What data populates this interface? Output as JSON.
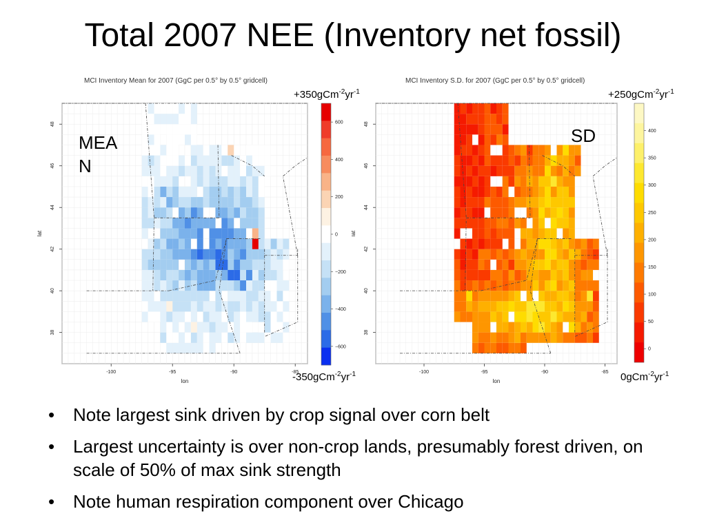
{
  "slide": {
    "title": "Total 2007 NEE (Inventory net fossil)",
    "bullets": [
      "Note largest sink driven by crop signal over corn belt",
      "Largest uncertainty is over non-crop lands, presumably forest driven, on scale of 50% of max sink strength",
      "Note human respiration component over Chicago"
    ]
  },
  "chart_data": [
    {
      "type": "heatmap",
      "title": "MCI Inventory Mean for 2007 (GgC per 0.5° by 0.5° gridcell)",
      "overlay_label": "MEAN",
      "overlay_label_lines": [
        "MEA",
        "N"
      ],
      "xlabel": "lon",
      "ylabel": "lat",
      "xlim": [
        -104,
        -84
      ],
      "ylim": [
        36.5,
        49
      ],
      "x_ticks": [
        "-100",
        "-95",
        "-90",
        "-85"
      ],
      "y_ticks": [
        "38",
        "40",
        "42",
        "44",
        "46",
        "48"
      ],
      "colorbar": {
        "ticks": [
          "600",
          "400",
          "200",
          "0",
          "−200",
          "−400",
          "−600"
        ],
        "range": [
          -700,
          700
        ],
        "top_label": {
          "main": "+350gCm",
          "sup1": "-2",
          "mid": "yr",
          "sup2": "-1"
        },
        "bottom_label": {
          "main": "-350gCm",
          "sup1": "-2",
          "mid": "yr",
          "sup2": "-1"
        },
        "colors": [
          "#e60000",
          "#ef3c2a",
          "#f6683f",
          "#f78c5e",
          "#f9b388",
          "#fbd4b4",
          "#fdf2e3",
          "#ffffff",
          "#e3f1fb",
          "#c5e1f6",
          "#a3cdf0",
          "#7bb2eb",
          "#5090e6",
          "#2c6be7",
          "#0a2ff0"
        ]
      },
      "cells": [
        [
          -88.5,
          42.0,
          650
        ],
        [
          -88.5,
          42.5,
          250
        ],
        [
          -90.5,
          46.5,
          200
        ],
        [
          -95.5,
          39.0,
          80
        ],
        [
          -93.5,
          38.0,
          60
        ],
        [
          -91.5,
          41.0,
          -520
        ],
        [
          -91.0,
          41.0,
          -560
        ],
        [
          -90.5,
          40.5,
          -580
        ],
        [
          -90.0,
          40.5,
          -520
        ],
        [
          -89.5,
          40.0,
          -470
        ],
        [
          -89.0,
          40.5,
          -460
        ],
        [
          -89.5,
          41.5,
          -500
        ],
        [
          -90.0,
          41.0,
          -480
        ],
        [
          -94.0,
          43.0,
          -450
        ],
        [
          -93.5,
          43.5,
          -430
        ],
        [
          -94.5,
          43.5,
          -420
        ],
        [
          -95.0,
          43.0,
          -400
        ],
        [
          -93.0,
          43.0,
          -380
        ],
        [
          -96.0,
          44.5,
          -380
        ],
        [
          -95.5,
          44.0,
          -360
        ],
        [
          -97.0,
          41.0,
          -320
        ]
      ]
    },
    {
      "type": "heatmap",
      "title": "MCI Inventory S.D. for 2007 (GgC per 0.5° by 0.5° gridcell)",
      "overlay_label": "SD",
      "xlabel": "lon",
      "ylabel": "lat",
      "xlim": [
        -104,
        -84
      ],
      "ylim": [
        36.5,
        49
      ],
      "x_ticks": [
        "-100",
        "-95",
        "-90",
        "-85"
      ],
      "y_ticks": [
        "38",
        "40",
        "42",
        "44",
        "46",
        "48"
      ],
      "colorbar": {
        "ticks": [
          "400",
          "350",
          "300",
          "250",
          "200",
          "150",
          "100",
          "50",
          "0"
        ],
        "range": [
          -25,
          450
        ],
        "top_label": {
          "main": "+250gCm",
          "sup1": "-2",
          "mid": "yr",
          "sup2": "-1"
        },
        "bottom_label": {
          "main": "0gCm",
          "sup1": "-2",
          "mid": "yr",
          "sup2": "-1"
        },
        "colors": [
          "#fdf8c4",
          "#fdf59e",
          "#fdf06a",
          "#fde830",
          "#fedc00",
          "#fec800",
          "#feb000",
          "#fe9600",
          "#fe7a00",
          "#fd5a00",
          "#fa3a00",
          "#f51a00",
          "#ee0000"
        ]
      },
      "cells": [
        [
          -91.0,
          39.0,
          340
        ],
        [
          -91.5,
          38.5,
          320
        ],
        [
          -90.5,
          38.0,
          330
        ],
        [
          -96.5,
          39.5,
          300
        ],
        [
          -86.5,
          39.5,
          330
        ],
        [
          -90.0,
          45.5,
          300
        ],
        [
          -89.5,
          45.0,
          310
        ],
        [
          -90.0,
          44.5,
          280
        ],
        [
          -90.5,
          43.5,
          300
        ],
        [
          -89.0,
          43.0,
          260
        ],
        [
          -89.5,
          46.0,
          280
        ],
        [
          -88.5,
          46.5,
          270
        ],
        [
          -88.0,
          44.0,
          240
        ],
        [
          -92.5,
          38.5,
          300
        ],
        [
          -93.0,
          39.0,
          280
        ],
        [
          -88.0,
          38.0,
          290
        ]
      ]
    }
  ]
}
